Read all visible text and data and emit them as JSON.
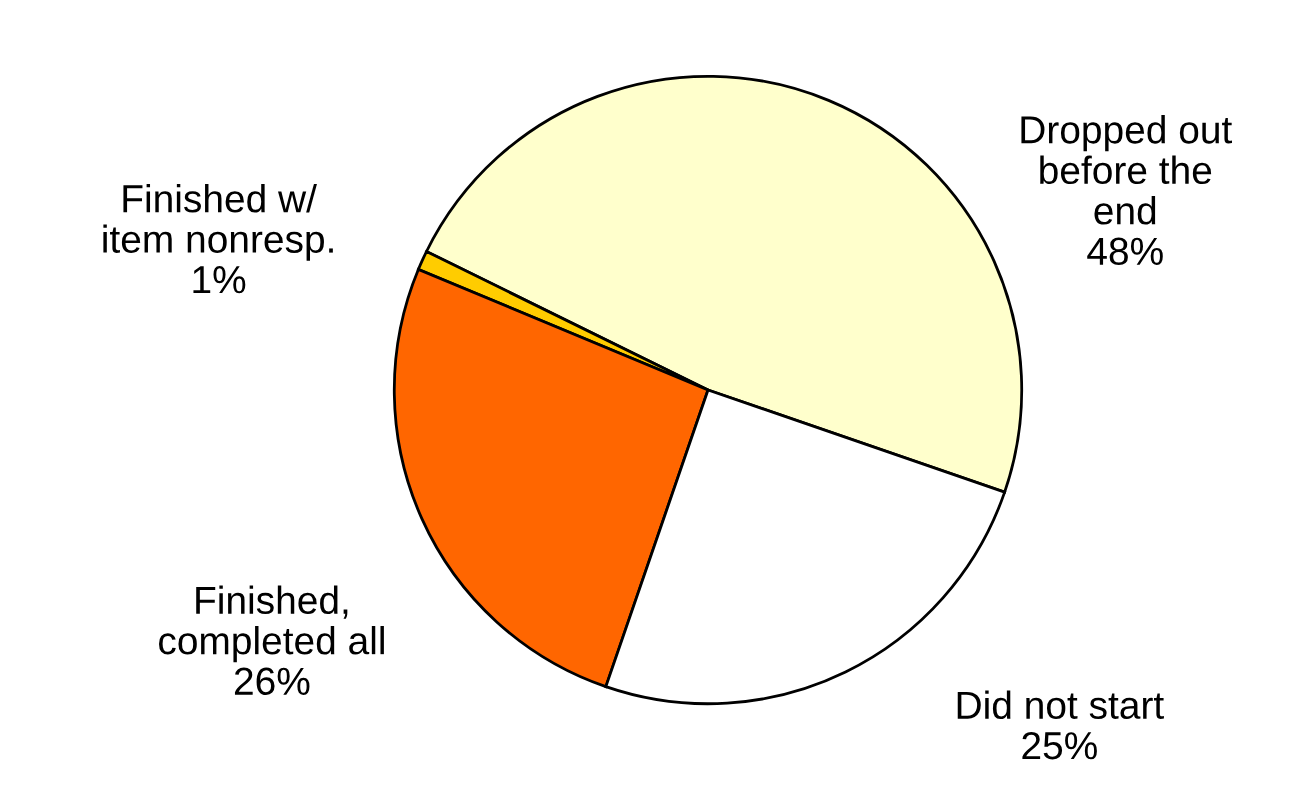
{
  "chart_data": {
    "type": "pie",
    "categories": [
      "Dropped out\nbefore the\nend",
      "Finished w/\nitem nonresp.",
      "Finished,\ncompleted all",
      "Did not start"
    ],
    "values": [
      48,
      1,
      26,
      25
    ],
    "value_labels": [
      "48%",
      "1%",
      "26%",
      "25%"
    ],
    "colors": [
      "#ffffcc",
      "#ffcc00",
      "#ff6600",
      "#ffffff"
    ],
    "legend": false
  }
}
